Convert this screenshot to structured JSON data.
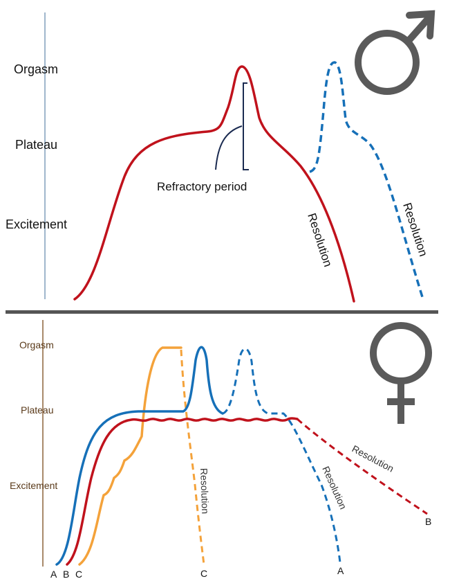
{
  "colors": {
    "red": "#c0121c",
    "blue": "#1670b8",
    "orange": "#f4a23a",
    "male_axis": "#9fb6cc",
    "female_axis": "#a8896a",
    "divider": "#555555",
    "symbol": "#5a5a5a"
  },
  "male": {
    "symbol": "male-symbol",
    "axis_labels": [
      "Orgasm",
      "Plateau",
      "Excitement"
    ],
    "refractory_label": "Refractory period",
    "resolution_red": "Resolution",
    "resolution_blue": "Resolution"
  },
  "female": {
    "symbol": "female-symbol",
    "axis_labels": [
      "Orgasm",
      "Plateau",
      "Excitement"
    ],
    "resolution_c": "Resolution",
    "resolution_a": "Resolution",
    "resolution_b": "Resolution",
    "start_labels": [
      "A",
      "B",
      "C"
    ],
    "end_c": "C",
    "end_a": "A",
    "end_b": "B"
  }
}
